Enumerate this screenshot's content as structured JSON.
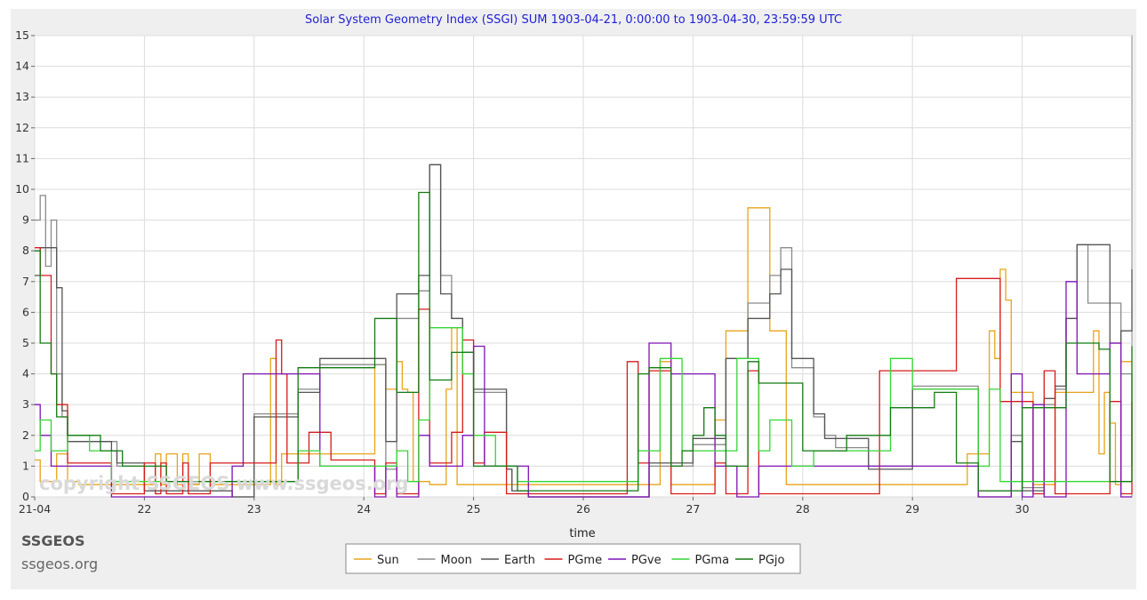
{
  "chart_data": {
    "type": "line",
    "title": "Solar System Geometry Index (SSGI) SUM 1903-04-21,  0:00:00 to 1903-04-30, 23:59:59 UTC",
    "xlabel": "time",
    "ylabel": "",
    "xlim": [
      0,
      10
    ],
    "ylim": [
      0,
      15
    ],
    "yticks": [
      0,
      1,
      2,
      3,
      4,
      5,
      6,
      7,
      8,
      9,
      10,
      11,
      12,
      13,
      14,
      15
    ],
    "xticks": [
      {
        "x": 0,
        "label": "21-04"
      },
      {
        "x": 1,
        "label": "22"
      },
      {
        "x": 2,
        "label": "23"
      },
      {
        "x": 3,
        "label": "24"
      },
      {
        "x": 4,
        "label": "25"
      },
      {
        "x": 5,
        "label": "26"
      },
      {
        "x": 6,
        "label": "27"
      },
      {
        "x": 7,
        "label": "28"
      },
      {
        "x": 8,
        "label": "29"
      },
      {
        "x": 9,
        "label": "30"
      }
    ],
    "grid": true,
    "legend_position": "bottom",
    "watermark": "copyright SSGEOS   www.ssgeos.org",
    "series": [
      {
        "name": "Sun",
        "color": "#e8a31b",
        "x": [
          0,
          0.05,
          0.1,
          0.2,
          0.3,
          0.35,
          0.4,
          0.5,
          0.7,
          0.75,
          0.9,
          1.0,
          1.1,
          1.15,
          1.2,
          1.3,
          1.35,
          1.4,
          1.5,
          1.6,
          1.65,
          1.7,
          1.8,
          2.0,
          2.15,
          2.2,
          2.25,
          2.4,
          2.6,
          2.8,
          3.0,
          3.1,
          3.2,
          3.3,
          3.35,
          3.4,
          3.45,
          3.6,
          3.75,
          3.8,
          3.85,
          4.0,
          4.2,
          4.6,
          5.0,
          5.5,
          5.6,
          5.7,
          5.8,
          6.0,
          6.2,
          6.3,
          6.35,
          6.4,
          6.5,
          6.7,
          6.75,
          6.8,
          6.85,
          6.9,
          7.0,
          7.2,
          7.4,
          7.5,
          7.8,
          8.2,
          8.4,
          8.5,
          8.6,
          8.7,
          8.75,
          8.8,
          8.85,
          8.9,
          9.0,
          9.1,
          9.2,
          9.3,
          9.6,
          9.65,
          9.7,
          9.75,
          9.8,
          9.85,
          9.9,
          9.95,
          10.0
        ],
        "y": [
          1.2,
          0.5,
          0.5,
          1.4,
          0.5,
          0.5,
          0.4,
          0.4,
          0.4,
          0.4,
          0.4,
          0.4,
          1.4,
          0.4,
          1.4,
          0.4,
          1.4,
          0.4,
          1.4,
          0.4,
          0.4,
          0.4,
          0.4,
          0.4,
          4.5,
          0.4,
          1.4,
          1.4,
          1.4,
          1.4,
          1.4,
          4.3,
          3.5,
          4.4,
          3.5,
          3.4,
          0.5,
          0.4,
          3.5,
          5.5,
          0.4,
          0.4,
          0.4,
          0.4,
          0.4,
          0.4,
          0.4,
          4.4,
          0.4,
          0.4,
          2.5,
          5.4,
          5.4,
          5.4,
          9.4,
          5.4,
          5.4,
          5.4,
          0.4,
          0.4,
          0.4,
          0.4,
          0.4,
          0.4,
          0.4,
          0.4,
          0.4,
          1.4,
          1.4,
          5.4,
          4.5,
          7.4,
          6.4,
          3.4,
          3.4,
          0.4,
          0.4,
          3.4,
          3.4,
          5.4,
          1.4,
          3.4,
          2.4,
          0.4,
          4.4,
          4.4,
          4.4
        ]
      },
      {
        "name": "Moon",
        "color": "#8a8a8a",
        "x": [
          0,
          0.05,
          0.1,
          0.15,
          0.2,
          0.25,
          0.3,
          0.4,
          0.5,
          0.6,
          0.7,
          0.75,
          0.8,
          0.9,
          1.0,
          1.2,
          1.4,
          1.6,
          1.8,
          1.9,
          2.0,
          2.2,
          2.4,
          2.5,
          2.6,
          2.8,
          3.0,
          3.2,
          3.3,
          3.4,
          3.5,
          3.6,
          3.7,
          3.75,
          3.8,
          3.9,
          4.0,
          4.2,
          4.3,
          4.35,
          4.4,
          4.5,
          4.6,
          4.8,
          5.0,
          5.2,
          5.5,
          5.6,
          5.8,
          6.0,
          6.2,
          6.3,
          6.4,
          6.5,
          6.6,
          6.7,
          6.8,
          6.9,
          7.0,
          7.1,
          7.2,
          7.3,
          7.5,
          7.6,
          7.8,
          8.0,
          8.2,
          8.4,
          8.6,
          8.8,
          8.9,
          9.0,
          9.1,
          9.2,
          9.3,
          9.4,
          9.5,
          9.6,
          9.7,
          9.8,
          9.9,
          10.0
        ],
        "y": [
          9.0,
          9.8,
          7.5,
          9.0,
          4.0,
          2.6,
          1.8,
          1.8,
          1.8,
          1.8,
          1.8,
          1.0,
          1.0,
          1.0,
          0.2,
          0.2,
          0.2,
          0.2,
          0.0,
          0.0,
          2.7,
          2.7,
          3.5,
          3.5,
          4.3,
          4.3,
          4.3,
          0.9,
          5.8,
          5.8,
          6.7,
          10.8,
          7.2,
          7.2,
          5.8,
          4.7,
          3.4,
          3.4,
          0.9,
          0.2,
          0.2,
          0.0,
          0.0,
          0.0,
          0.0,
          0.0,
          0.0,
          1.0,
          1.0,
          1.7,
          1.7,
          4.5,
          4.5,
          6.3,
          6.3,
          7.2,
          8.1,
          4.2,
          4.2,
          2.6,
          2.0,
          1.6,
          1.6,
          1.0,
          1.0,
          3.6,
          3.6,
          3.6,
          0.0,
          0.0,
          2.0,
          0.3,
          0.3,
          3.0,
          3.5,
          5.8,
          8.2,
          6.3,
          6.3,
          6.3,
          4.0,
          1.0
        ]
      },
      {
        "name": "Earth",
        "color": "#555555",
        "x": [
          0,
          0.05,
          0.1,
          0.15,
          0.2,
          0.25,
          0.3,
          0.4,
          0.5,
          0.6,
          0.7,
          0.75,
          0.8,
          0.9,
          1.0,
          1.2,
          1.4,
          1.6,
          1.8,
          1.9,
          2.0,
          2.2,
          2.4,
          2.5,
          2.6,
          2.8,
          3.0,
          3.2,
          3.3,
          3.4,
          3.5,
          3.6,
          3.7,
          3.75,
          3.8,
          3.9,
          4.0,
          4.2,
          4.3,
          4.35,
          4.4,
          4.5,
          4.6,
          4.8,
          5.0,
          5.2,
          5.5,
          5.6,
          5.8,
          6.0,
          6.2,
          6.3,
          6.4,
          6.5,
          6.6,
          6.7,
          6.8,
          6.9,
          7.0,
          7.1,
          7.2,
          7.3,
          7.5,
          7.6,
          7.8,
          8.0,
          8.2,
          8.4,
          8.6,
          8.8,
          8.9,
          9.0,
          9.1,
          9.2,
          9.3,
          9.4,
          9.5,
          9.6,
          9.7,
          9.8,
          9.9,
          10.0
        ],
        "y": [
          7.2,
          8.1,
          8.1,
          8.1,
          6.8,
          2.8,
          1.8,
          1.8,
          1.8,
          1.8,
          1.5,
          1.1,
          1.1,
          1.1,
          0.2,
          0.2,
          0.2,
          0.2,
          0.0,
          0.0,
          2.6,
          2.6,
          3.4,
          3.4,
          4.5,
          4.5,
          4.5,
          1.8,
          6.6,
          6.6,
          7.2,
          10.8,
          6.6,
          6.6,
          5.8,
          4.7,
          3.5,
          3.5,
          0.9,
          0.2,
          0.2,
          0.0,
          0.0,
          0.0,
          0.0,
          0.0,
          0.0,
          1.1,
          1.1,
          1.9,
          1.9,
          4.5,
          4.5,
          5.8,
          5.8,
          6.6,
          7.4,
          4.5,
          4.5,
          2.7,
          1.9,
          1.9,
          1.9,
          0.9,
          0.9,
          3.5,
          3.5,
          3.5,
          0.2,
          0.2,
          1.8,
          0.2,
          0.2,
          3.2,
          3.6,
          5.8,
          8.2,
          8.2,
          8.2,
          5.0,
          5.4,
          7.4
        ]
      },
      {
        "name": "PGme",
        "color": "#d61b1b",
        "x": [
          0,
          0.05,
          0.1,
          0.15,
          0.2,
          0.3,
          0.4,
          0.5,
          0.6,
          0.7,
          0.8,
          0.9,
          1.0,
          1.1,
          1.15,
          1.2,
          1.3,
          1.35,
          1.4,
          1.5,
          1.55,
          1.6,
          1.7,
          1.75,
          1.8,
          2.0,
          2.2,
          2.25,
          2.3,
          2.4,
          2.5,
          2.6,
          2.7,
          2.8,
          3.0,
          3.1,
          3.2,
          3.3,
          3.4,
          3.5,
          3.6,
          3.7,
          3.75,
          3.8,
          3.9,
          4.0,
          4.1,
          4.2,
          4.3,
          4.4,
          4.5,
          4.6,
          4.8,
          5.0,
          5.4,
          5.5,
          5.6,
          5.7,
          5.8,
          6.0,
          6.2,
          6.3,
          6.4,
          6.5,
          6.6,
          6.7,
          6.8,
          7.0,
          7.4,
          7.6,
          7.7,
          7.8,
          8.0,
          8.2,
          8.4,
          8.6,
          8.7,
          8.8,
          8.9,
          9.0,
          9.1,
          9.2,
          9.3,
          9.4,
          9.5,
          9.6,
          9.7,
          9.8,
          9.9,
          10.0
        ],
        "y": [
          8.1,
          7.2,
          7.2,
          4.0,
          3.0,
          1.1,
          1.1,
          1.1,
          1.1,
          0.1,
          0.1,
          0.1,
          1.1,
          0.1,
          1.1,
          0.1,
          0.1,
          1.1,
          0.1,
          0.1,
          0.1,
          1.1,
          1.1,
          1.1,
          1.1,
          1.1,
          5.1,
          4.0,
          1.1,
          1.1,
          2.1,
          2.1,
          1.2,
          1.2,
          1.2,
          0.1,
          1.1,
          0.1,
          0.1,
          6.1,
          1.1,
          1.1,
          1.1,
          2.1,
          5.1,
          1.1,
          2.1,
          2.1,
          0.1,
          0.1,
          0.1,
          0.1,
          0.1,
          0.1,
          4.4,
          1.1,
          4.1,
          4.1,
          0.1,
          0.1,
          1.1,
          0.1,
          0.1,
          4.1,
          0.1,
          0.1,
          0.1,
          0.1,
          0.1,
          0.1,
          4.1,
          4.1,
          4.1,
          4.1,
          7.1,
          7.1,
          7.1,
          3.1,
          3.1,
          3.1,
          0.1,
          4.1,
          0.1,
          0.1,
          0.1,
          0.1,
          0.1,
          3.1,
          0.1,
          3.1
        ]
      },
      {
        "name": "PGve",
        "color": "#7f12b5",
        "x": [
          0,
          0.05,
          0.1,
          0.15,
          0.2,
          0.3,
          0.4,
          0.5,
          0.6,
          0.7,
          0.8,
          0.9,
          1.0,
          1.2,
          1.4,
          1.6,
          1.8,
          1.9,
          2.0,
          2.2,
          2.4,
          2.5,
          2.6,
          2.7,
          2.8,
          3.0,
          3.1,
          3.2,
          3.3,
          3.4,
          3.5,
          3.6,
          3.7,
          3.8,
          3.9,
          4.0,
          4.1,
          4.2,
          4.3,
          4.4,
          4.5,
          4.6,
          4.8,
          5.0,
          5.4,
          5.5,
          5.6,
          5.7,
          5.8,
          6.0,
          6.2,
          6.4,
          6.6,
          6.8,
          7.0,
          7.4,
          7.6,
          7.8,
          8.0,
          8.2,
          8.4,
          8.6,
          8.7,
          8.8,
          8.9,
          9.0,
          9.1,
          9.2,
          9.3,
          9.4,
          9.5,
          9.6,
          9.7,
          9.8,
          9.9,
          10.0
        ],
        "y": [
          3.0,
          2.0,
          2.0,
          1.0,
          1.0,
          1.0,
          1.0,
          1.0,
          1.0,
          0.0,
          0.0,
          0.0,
          0.0,
          0.0,
          0.0,
          0.0,
          1.0,
          4.0,
          4.0,
          4.0,
          4.0,
          4.0,
          1.0,
          1.0,
          1.0,
          1.0,
          0.0,
          1.0,
          0.0,
          0.0,
          2.0,
          1.0,
          1.0,
          1.0,
          2.0,
          4.9,
          1.0,
          1.0,
          1.0,
          1.0,
          0.0,
          0.0,
          0.0,
          0.0,
          0.0,
          0.0,
          5.0,
          5.0,
          4.0,
          4.0,
          1.0,
          0.0,
          1.0,
          1.0,
          1.0,
          1.0,
          1.0,
          1.0,
          1.0,
          1.0,
          1.0,
          0.0,
          0.0,
          0.0,
          4.0,
          0.0,
          3.0,
          0.0,
          0.0,
          7.0,
          4.0,
          4.0,
          4.0,
          5.0,
          0.0,
          0.0
        ]
      },
      {
        "name": "PGma",
        "color": "#33d633",
        "x": [
          0,
          0.05,
          0.1,
          0.15,
          0.2,
          0.3,
          0.4,
          0.5,
          0.6,
          0.7,
          0.8,
          1.0,
          1.2,
          1.4,
          1.6,
          1.8,
          2.0,
          2.2,
          2.4,
          2.5,
          2.6,
          2.8,
          3.0,
          3.2,
          3.3,
          3.4,
          3.5,
          3.6,
          3.7,
          3.8,
          3.9,
          4.0,
          4.2,
          4.4,
          4.6,
          4.8,
          5.0,
          5.2,
          5.4,
          5.5,
          5.6,
          5.7,
          5.8,
          5.9,
          6.0,
          6.2,
          6.4,
          6.6,
          6.7,
          6.8,
          6.9,
          7.0,
          7.1,
          7.2,
          7.4,
          7.6,
          7.8,
          7.9,
          8.0,
          8.2,
          8.4,
          8.6,
          8.7,
          8.8,
          8.9,
          9.0,
          9.1,
          9.2,
          9.4,
          9.6,
          9.8,
          10.0
        ],
        "y": [
          1.5,
          2.5,
          2.5,
          1.5,
          1.5,
          2.0,
          2.0,
          1.5,
          1.5,
          0.5,
          0.5,
          0.5,
          0.5,
          0.5,
          0.5,
          0.5,
          0.5,
          0.5,
          1.5,
          1.5,
          1.0,
          1.0,
          1.0,
          1.0,
          1.5,
          0.5,
          2.5,
          5.5,
          5.5,
          5.5,
          4.0,
          2.0,
          1.0,
          0.5,
          0.5,
          0.5,
          0.5,
          0.5,
          0.5,
          1.5,
          1.5,
          4.5,
          4.5,
          1.5,
          1.5,
          1.5,
          4.5,
          1.5,
          2.5,
          2.5,
          1.0,
          1.0,
          1.5,
          1.5,
          1.5,
          1.5,
          4.5,
          4.5,
          3.5,
          3.5,
          3.5,
          1.0,
          3.5,
          0.5,
          0.5,
          0.5,
          0.5,
          0.5,
          0.5,
          0.5,
          0.5,
          0.5
        ]
      },
      {
        "name": "PGjo",
        "color": "#137a13",
        "x": [
          0,
          0.05,
          0.1,
          0.15,
          0.2,
          0.25,
          0.3,
          0.4,
          0.5,
          0.6,
          0.7,
          0.8,
          1.0,
          1.2,
          1.4,
          1.6,
          1.8,
          2.0,
          2.2,
          2.4,
          2.5,
          2.6,
          2.8,
          3.0,
          3.1,
          3.2,
          3.3,
          3.4,
          3.5,
          3.6,
          3.7,
          3.8,
          3.9,
          4.0,
          4.2,
          4.4,
          4.6,
          4.8,
          5.0,
          5.2,
          5.4,
          5.5,
          5.6,
          5.7,
          5.8,
          5.9,
          6.0,
          6.1,
          6.2,
          6.3,
          6.5,
          6.6,
          6.7,
          6.8,
          7.0,
          7.2,
          7.4,
          7.6,
          7.8,
          8.0,
          8.2,
          8.4,
          8.6,
          8.8,
          9.0,
          9.2,
          9.4,
          9.6,
          9.7,
          9.8,
          9.9,
          10.0
        ],
        "y": [
          8.0,
          5.0,
          5.0,
          4.0,
          2.6,
          2.6,
          2.0,
          2.0,
          2.0,
          1.5,
          1.5,
          1.0,
          1.0,
          0.5,
          0.5,
          0.5,
          0.5,
          0.5,
          0.5,
          4.2,
          4.2,
          4.2,
          4.2,
          4.2,
          5.8,
          5.8,
          3.4,
          3.4,
          9.9,
          3.8,
          3.8,
          4.7,
          4.7,
          1.0,
          1.0,
          0.2,
          0.2,
          0.2,
          0.2,
          0.2,
          0.2,
          4.0,
          4.2,
          4.2,
          1.0,
          1.5,
          2.0,
          2.9,
          2.0,
          1.0,
          4.4,
          3.7,
          3.7,
          3.7,
          1.5,
          1.5,
          2.0,
          2.0,
          2.9,
          2.9,
          3.4,
          1.1,
          0.2,
          0.2,
          2.9,
          2.9,
          5.0,
          5.0,
          4.8,
          0.5,
          0.5,
          4.9
        ]
      }
    ],
    "brand": {
      "name": "SSGEOS",
      "url": "ssgeos.org"
    }
  }
}
